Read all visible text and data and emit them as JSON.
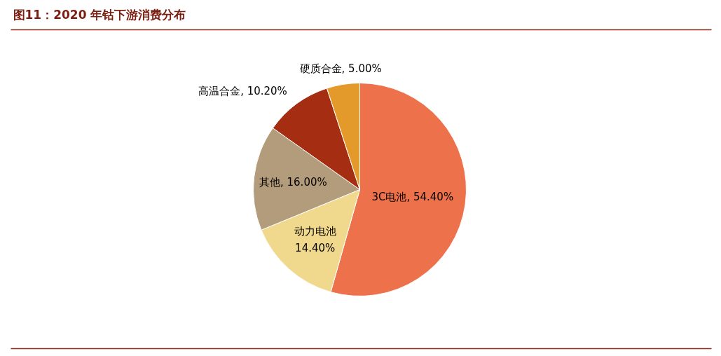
{
  "chart_data": {
    "type": "pie",
    "title": "图11：2020 年钴下游消费分布",
    "categories": [
      "3C电池",
      "动力电池",
      "其他",
      "高温合金",
      "硬质合金"
    ],
    "values": [
      54.4,
      14.4,
      16.0,
      10.2,
      5.0
    ],
    "value_labels": [
      "54.40%",
      "14.40%",
      "16.00%",
      "10.20%",
      "5.00%"
    ],
    "colors": [
      "#ed714a",
      "#f0d98c",
      "#b39c7b",
      "#a52d12",
      "#e39a2a"
    ]
  }
}
